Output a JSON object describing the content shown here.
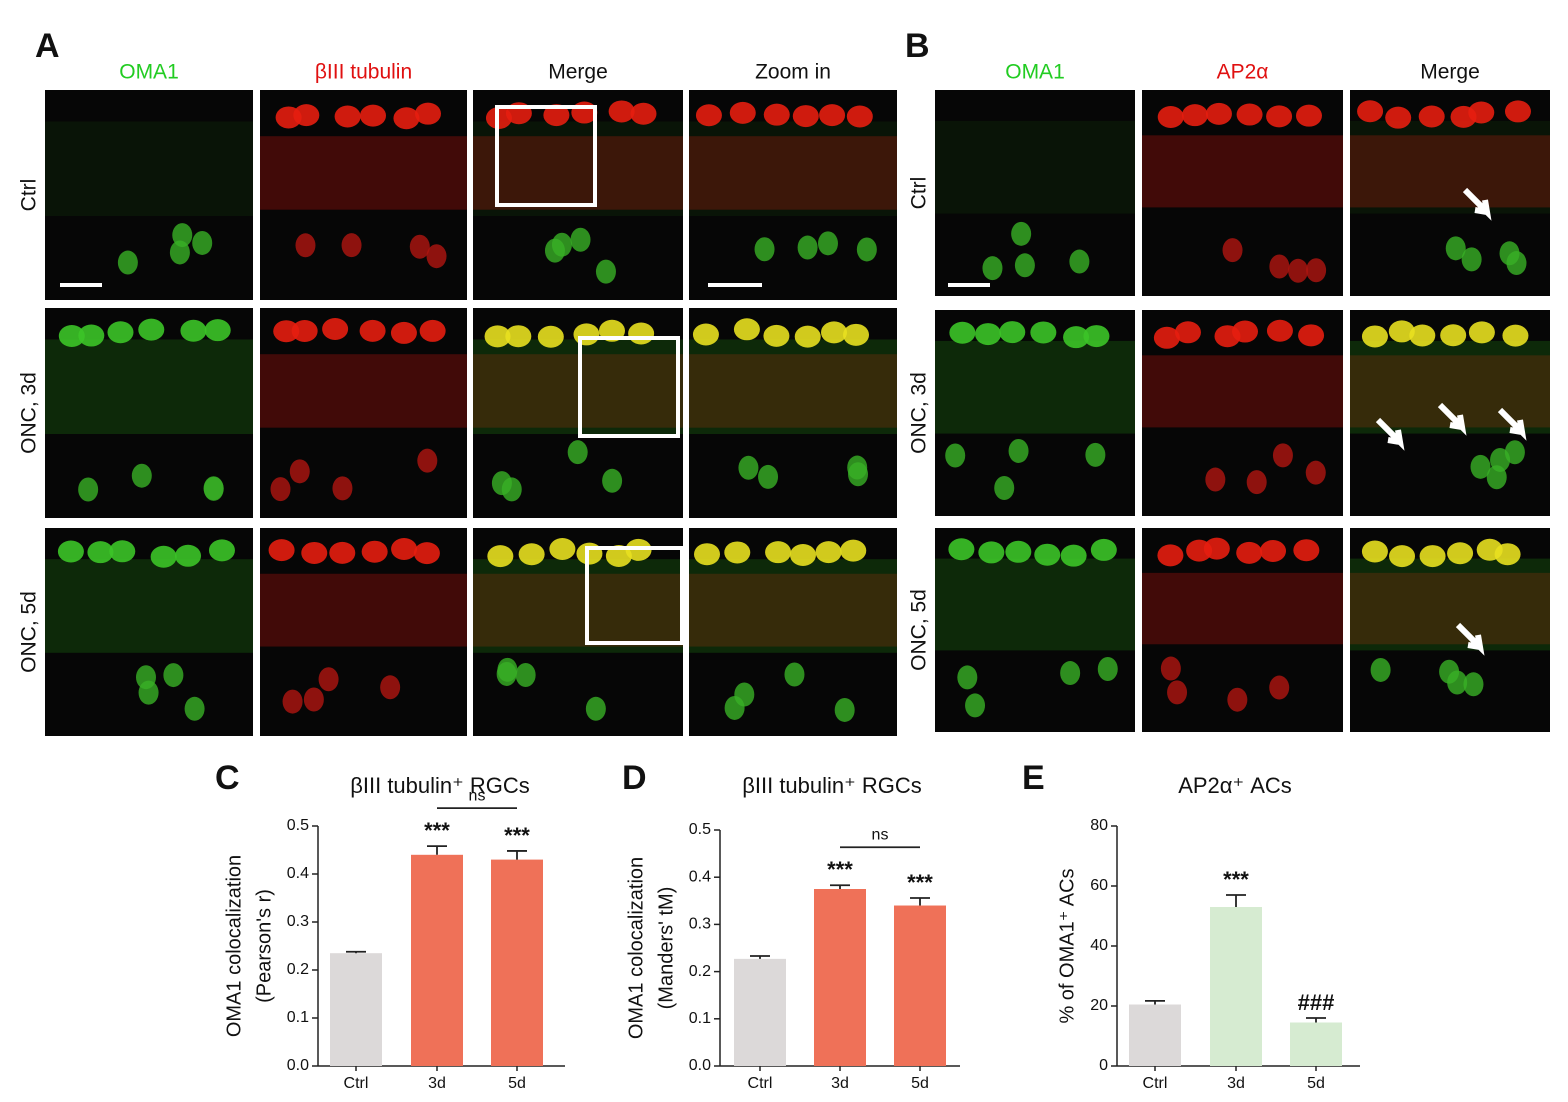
{
  "figure": {
    "panel_a": {
      "letter": "A",
      "columns": [
        "OMA1",
        "βIII tubulin",
        "Merge",
        "Zoom in"
      ],
      "rows": [
        "Ctrl",
        "ONC, 3d",
        "ONC, 5d"
      ]
    },
    "panel_b": {
      "letter": "B",
      "columns": [
        "OMA1",
        "AP2α",
        "Merge"
      ],
      "rows": [
        "Ctrl",
        "ONC, 3d",
        "ONC, 5d"
      ]
    }
  },
  "chart_data": [
    {
      "type": "bar",
      "letter": "C",
      "title": "βIII tubulin⁺ RGCs",
      "ylabel": [
        "OMA1 colocalization",
        "(Pearson's r)"
      ],
      "categories": [
        "Ctrl",
        "3d",
        "5d"
      ],
      "values": [
        0.235,
        0.44,
        0.43
      ],
      "errors": [
        0.003,
        0.018,
        0.018
      ],
      "colors": [
        "#dcd9d9",
        "#ef7158",
        "#ef7158"
      ],
      "significance": [
        null,
        "***",
        "***"
      ],
      "bracket_label": "ns",
      "ylim": [
        0,
        0.5
      ],
      "yticks": [
        {
          "value": 0,
          "label": "0.0"
        },
        0.1,
        0.2,
        0.3,
        0.4,
        0.5
      ]
    },
    {
      "type": "bar",
      "letter": "D",
      "title": "βIII tubulin⁺ RGCs",
      "ylabel": [
        "OMA1 colocalization",
        "(Manders' tM)"
      ],
      "categories": [
        "Ctrl",
        "3d",
        "5d"
      ],
      "values": [
        0.227,
        0.375,
        0.34
      ],
      "errors": [
        0.006,
        0.008,
        0.016
      ],
      "colors": [
        "#dcd9d9",
        "#ef7158",
        "#ef7158"
      ],
      "significance": [
        null,
        "***",
        "***"
      ],
      "bracket_label": "ns",
      "ylim": [
        0,
        0.5
      ],
      "yticks": [
        {
          "value": 0,
          "label": "0.0"
        },
        0.1,
        0.2,
        0.3,
        0.4,
        0.5
      ]
    },
    {
      "type": "bar",
      "letter": "E",
      "title": "AP2α⁺ ACs",
      "ylabel": [
        "% of OMA1⁺ ACs"
      ],
      "categories": [
        "Ctrl",
        "3d",
        "5d"
      ],
      "values": [
        20.5,
        53,
        14.5
      ],
      "errors": [
        1.2,
        4,
        1.5
      ],
      "colors": [
        "#dcd9d9",
        "#d6ebd1",
        "#d6ebd1"
      ],
      "significance": [
        null,
        "***",
        "###"
      ],
      "ylim": [
        0,
        80
      ],
      "yticks": [
        0,
        20,
        40,
        60,
        80
      ]
    }
  ]
}
